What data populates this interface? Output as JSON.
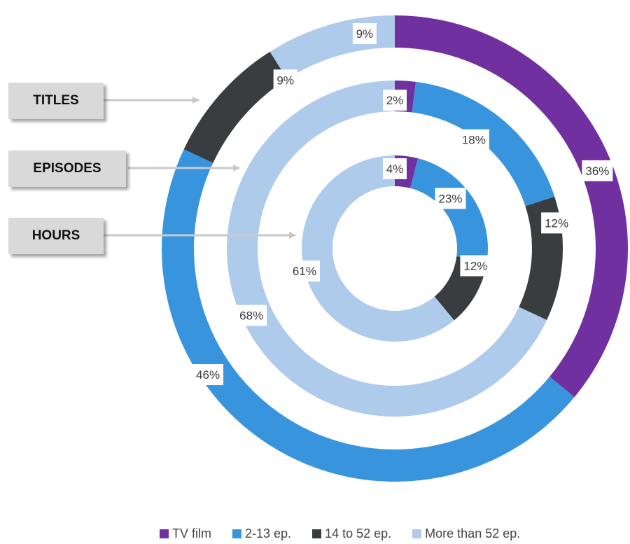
{
  "chart_data": {
    "type": "donut",
    "categories": [
      "TV film",
      "2-13 ep.",
      "14 to 52 ep.",
      "More than 52 ep."
    ],
    "colors": [
      "#7030a0",
      "#3895dd",
      "#3a3d40",
      "#aecbeb"
    ],
    "series": [
      {
        "name": "TITLES",
        "values": [
          36,
          46,
          9,
          9
        ],
        "labels": [
          "36%",
          "46%",
          "9%",
          "9%"
        ]
      },
      {
        "name": "EPISODES",
        "values": [
          2,
          18,
          12,
          68
        ],
        "labels": [
          "2%",
          "18%",
          "12%",
          "68%"
        ]
      },
      {
        "name": "HOURS",
        "values": [
          4,
          23,
          12,
          61
        ],
        "labels": [
          "4%",
          "23%",
          "12%",
          "61%"
        ]
      }
    ],
    "legend_position": "bottom"
  },
  "ring_labels": [
    "TITLES",
    "EPISODES",
    "HOURS"
  ]
}
